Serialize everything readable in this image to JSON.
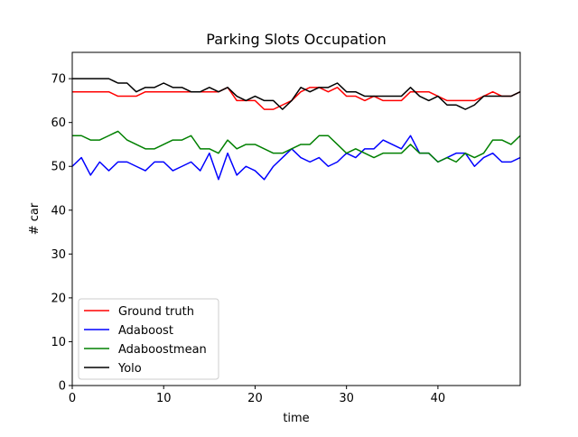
{
  "chart_data": {
    "type": "line",
    "title": "Parking Slots Occupation",
    "xlabel": "time",
    "ylabel": "# car",
    "xlim": [
      0,
      49
    ],
    "ylim": [
      0,
      76
    ],
    "xticks": [
      0,
      10,
      20,
      30,
      40
    ],
    "yticks": [
      0,
      10,
      20,
      30,
      40,
      50,
      60,
      70
    ],
    "grid": false,
    "legend_position": "lower-left",
    "x": [
      0,
      1,
      2,
      3,
      4,
      5,
      6,
      7,
      8,
      9,
      10,
      11,
      12,
      13,
      14,
      15,
      16,
      17,
      18,
      19,
      20,
      21,
      22,
      23,
      24,
      25,
      26,
      27,
      28,
      29,
      30,
      31,
      32,
      33,
      34,
      35,
      36,
      37,
      38,
      39,
      40,
      41,
      42,
      43,
      44,
      45,
      46,
      47,
      48,
      49
    ],
    "series": [
      {
        "name": "Ground truth",
        "color": "#ff0000",
        "values": [
          67,
          67,
          67,
          67,
          67,
          66,
          66,
          66,
          67,
          67,
          67,
          67,
          67,
          67,
          67,
          67,
          67,
          68,
          65,
          65,
          65,
          63,
          63,
          64,
          65,
          67,
          68,
          68,
          67,
          68,
          66,
          66,
          65,
          66,
          65,
          65,
          65,
          67,
          67,
          67,
          66,
          65,
          65,
          65,
          65,
          66,
          67,
          66,
          66,
          67
        ]
      },
      {
        "name": "Adaboost",
        "color": "#0000ff",
        "values": [
          50,
          52,
          48,
          51,
          49,
          51,
          51,
          50,
          49,
          51,
          51,
          49,
          50,
          51,
          49,
          53,
          47,
          53,
          48,
          50,
          49,
          47,
          50,
          52,
          54,
          52,
          51,
          52,
          50,
          51,
          53,
          52,
          54,
          54,
          56,
          55,
          54,
          57,
          53,
          53,
          51,
          52,
          53,
          53,
          50,
          52,
          53,
          51,
          51,
          52
        ]
      },
      {
        "name": "Adaboostmean",
        "color": "#008000",
        "values": [
          57,
          57,
          56,
          56,
          57,
          58,
          56,
          55,
          54,
          54,
          55,
          56,
          56,
          57,
          54,
          54,
          53,
          56,
          54,
          55,
          55,
          54,
          53,
          53,
          54,
          55,
          55,
          57,
          57,
          55,
          53,
          54,
          53,
          52,
          53,
          53,
          53,
          55,
          53,
          53,
          51,
          52,
          51,
          53,
          52,
          53,
          56,
          56,
          55,
          57
        ]
      },
      {
        "name": "Yolo",
        "color": "#000000",
        "values": [
          70,
          70,
          70,
          70,
          70,
          69,
          69,
          67,
          68,
          68,
          69,
          68,
          68,
          67,
          67,
          68,
          67,
          68,
          66,
          65,
          66,
          65,
          65,
          63,
          65,
          68,
          67,
          68,
          68,
          69,
          67,
          67,
          66,
          66,
          66,
          66,
          66,
          68,
          66,
          65,
          66,
          64,
          64,
          63,
          64,
          66,
          66,
          66,
          66,
          67
        ]
      }
    ]
  }
}
